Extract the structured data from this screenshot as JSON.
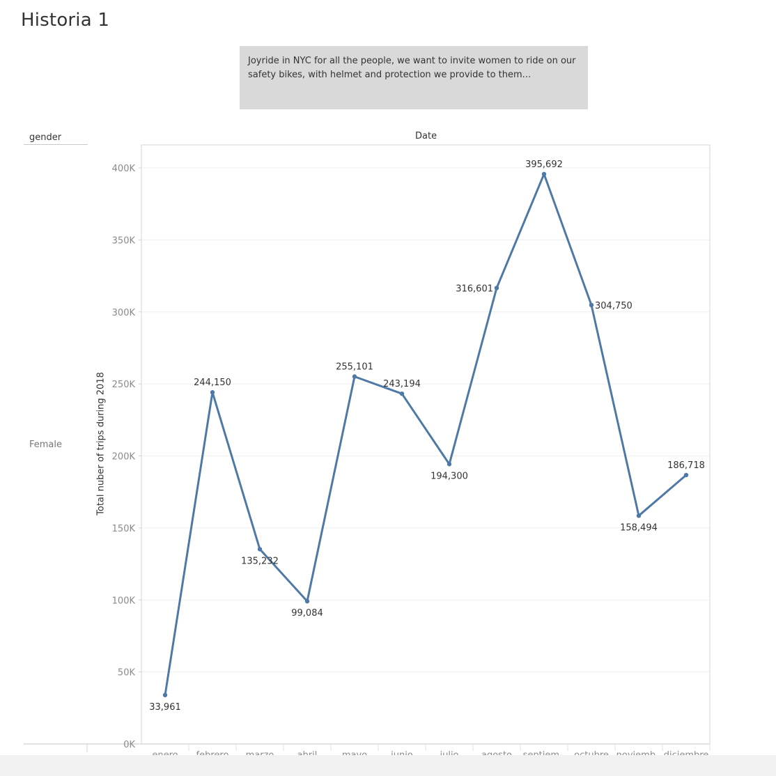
{
  "story": {
    "title": "Historia 1",
    "caption": "Joyride in NYC for all the people, we want to invite women to ride on our safety bikes, with helmet and protection we provide to them..."
  },
  "chart_data": {
    "type": "line",
    "row_header": "gender",
    "column_header": "Date",
    "row_label": "Female",
    "ylabel": "Total nuber of trips during 2018",
    "categories": [
      "enero",
      "febrero",
      "marzo",
      "abril",
      "mayo",
      "junio",
      "julio",
      "agosto",
      "septiem..",
      "octubre",
      "noviemb..",
      "diciembre"
    ],
    "series": [
      {
        "values": [
          33961,
          244150,
          135232,
          99084,
          255101,
          243194,
          194300,
          316601,
          395692,
          304750,
          158494,
          186718
        ]
      }
    ],
    "data_labels": [
      "33,961",
      "244,150",
      "135,232",
      "99,084",
      "255,101",
      "243,194",
      "194,300",
      "316,601",
      "395,692",
      "304,750",
      "158,494",
      "186,718"
    ],
    "ylim": [
      0,
      400000
    ],
    "yticks": [
      {
        "value": 0,
        "label": "0K"
      },
      {
        "value": 50000,
        "label": "50K"
      },
      {
        "value": 100000,
        "label": "100K"
      },
      {
        "value": 150000,
        "label": "150K"
      },
      {
        "value": 200000,
        "label": "200K"
      },
      {
        "value": 250000,
        "label": "250K"
      },
      {
        "value": 300000,
        "label": "300K"
      },
      {
        "value": 350000,
        "label": "350K"
      },
      {
        "value": 400000,
        "label": "400K"
      }
    ],
    "line_color": "#4e79a7",
    "grid": true
  }
}
